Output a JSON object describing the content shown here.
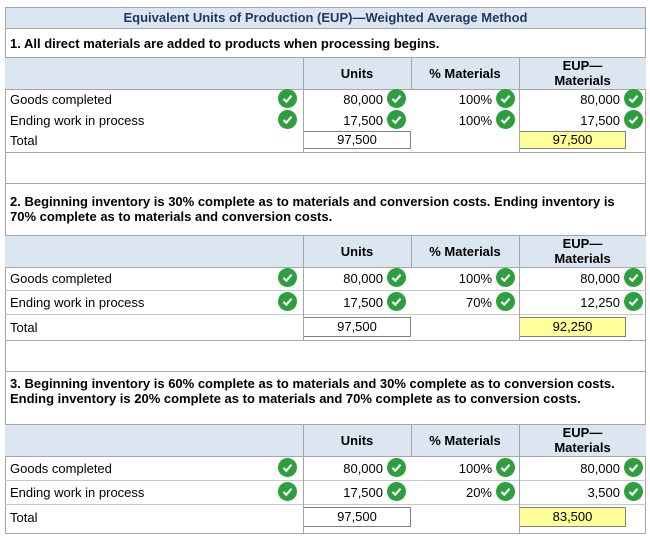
{
  "title": "Equivalent Units of Production (EUP)—Weighted Average Method",
  "columns": {
    "units": "Units",
    "materials": "% Materials",
    "eup": "EUP—\nMaterials"
  },
  "sections": [
    {
      "question": "1. All direct materials are added to products when processing begins.",
      "rows": [
        {
          "label": "Goods completed",
          "units": "80,000",
          "pct": "100%",
          "eup": "80,000"
        },
        {
          "label": "Ending work in process",
          "units": "17,500",
          "pct": "100%",
          "eup": "17,500"
        }
      ],
      "total": {
        "label": "Total",
        "units": "97,500",
        "eup": "97,500"
      }
    },
    {
      "question": "2. Beginning inventory is 30% complete as to materials and conversion costs. Ending inventory is 70% complete as to materials and conversion costs.",
      "rows": [
        {
          "label": "Goods completed",
          "units": "80,000",
          "pct": "100%",
          "eup": "80,000"
        },
        {
          "label": "Ending work in process",
          "units": "17,500",
          "pct": "70%",
          "eup": "12,250"
        }
      ],
      "total": {
        "label": "Total",
        "units": "97,500",
        "eup": "92,250"
      }
    },
    {
      "question": "3. Beginning inventory is 60% complete as to materials and 30% complete as to conversion costs. Ending inventory is 20% complete as to materials and 70% complete as to conversion costs.",
      "rows": [
        {
          "label": "Goods completed",
          "units": "80,000",
          "pct": "100%",
          "eup": "80,000"
        },
        {
          "label": "Ending work in process",
          "units": "17,500",
          "pct": "20%",
          "eup": "3,500"
        }
      ],
      "total": {
        "label": "Total",
        "units": "97,500",
        "eup": "83,500"
      }
    }
  ],
  "colors": {
    "header_bg": "#dce6f1",
    "check": "#2e9f3e",
    "total_highlight": "#ffff99",
    "title_text": "#1f3864"
  },
  "icons": {
    "check": "check-circle-icon"
  }
}
